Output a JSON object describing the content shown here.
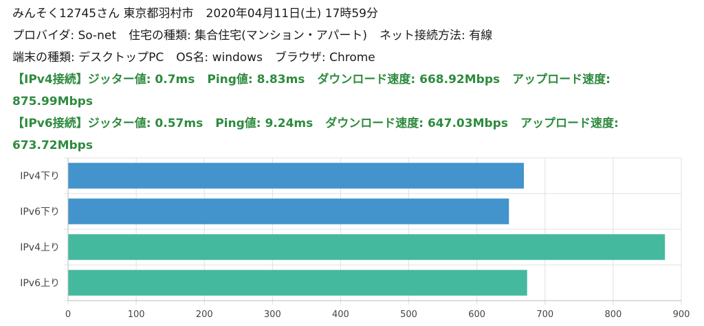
{
  "header": {
    "line1": {
      "user": "みんそく12745さん",
      "location": "東京都羽村市",
      "datetime": "2020年04月11日(土) 17時59分"
    },
    "line2": {
      "provider": "プロバイダ: So-net",
      "housing": "住宅の種類: 集合住宅(マンション・アパート)",
      "connection": "ネット接続方法: 有線"
    },
    "line3": {
      "device": "端末の種類: デスクトップPC",
      "os": "OS名: windows",
      "browser": "ブラウザ: Chrome"
    }
  },
  "results": {
    "ipv4": {
      "prefix": "【IPv4接続】",
      "jitter": "ジッター値: 0.7ms",
      "ping": "Ping値: 8.83ms",
      "download": "ダウンロード速度: 668.92Mbps",
      "upload_label": "アップロード速度:",
      "upload_value": "875.99Mbps"
    },
    "ipv6": {
      "prefix": "【IPv6接続】",
      "jitter": "ジッター値: 0.57ms",
      "ping": "Ping値: 9.24ms",
      "download": "ダウンロード速度: 647.03Mbps",
      "upload_label": "アップロード速度:",
      "upload_value": "673.72Mbps"
    }
  },
  "colors": {
    "download_bar": "#4393cc",
    "upload_bar": "#45b99e",
    "result_text": "#2e8b3e",
    "grid": "#e0e0e0"
  },
  "chart_data": {
    "type": "bar",
    "orientation": "horizontal",
    "categories": [
      "IPv4下り",
      "IPv6下り",
      "IPv4上り",
      "IPv6上り"
    ],
    "values": [
      668.92,
      647.03,
      875.99,
      673.72
    ],
    "bar_colors": [
      "#4393cc",
      "#4393cc",
      "#45b99e",
      "#45b99e"
    ],
    "xlim": [
      0,
      900
    ],
    "xticks": [
      0,
      100,
      200,
      300,
      400,
      500,
      600,
      700,
      800,
      900
    ],
    "grid": true,
    "legend": "none",
    "title": "",
    "xlabel": "",
    "ylabel": ""
  }
}
